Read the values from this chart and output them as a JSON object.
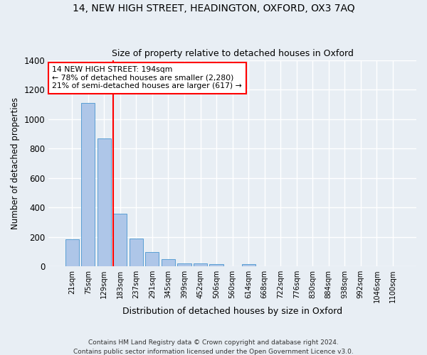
{
  "title": "14, NEW HIGH STREET, HEADINGTON, OXFORD, OX3 7AQ",
  "subtitle": "Size of property relative to detached houses in Oxford",
  "xlabel": "Distribution of detached houses by size in Oxford",
  "ylabel": "Number of detached properties",
  "footnote": "Contains HM Land Registry data © Crown copyright and database right 2024.\nContains public sector information licensed under the Open Government Licence v3.0.",
  "bar_labels": [
    "21sqm",
    "75sqm",
    "129sqm",
    "183sqm",
    "237sqm",
    "291sqm",
    "345sqm",
    "399sqm",
    "452sqm",
    "506sqm",
    "560sqm",
    "614sqm",
    "668sqm",
    "722sqm",
    "776sqm",
    "830sqm",
    "884sqm",
    "938sqm",
    "992sqm",
    "1046sqm",
    "1100sqm"
  ],
  "bar_values": [
    185,
    1110,
    870,
    355,
    190,
    95,
    50,
    22,
    18,
    16,
    0,
    14,
    0,
    0,
    0,
    0,
    0,
    0,
    0,
    0,
    0
  ],
  "bar_color": "#aec6e8",
  "bar_edgecolor": "#5a9fd4",
  "property_line_label": "14 NEW HIGH STREET: 194sqm",
  "annotation_line1": "← 78% of detached houses are smaller (2,280)",
  "annotation_line2": "21% of semi-detached houses are larger (617) →",
  "annotation_box_color": "white",
  "annotation_box_edgecolor": "red",
  "vline_color": "red",
  "vline_index": 3,
  "ylim": [
    0,
    1400
  ],
  "yticks": [
    0,
    200,
    400,
    600,
    800,
    1000,
    1200,
    1400
  ],
  "background_color": "#e8eef4",
  "grid_color": "white",
  "title_fontsize": 10,
  "subtitle_fontsize": 9
}
